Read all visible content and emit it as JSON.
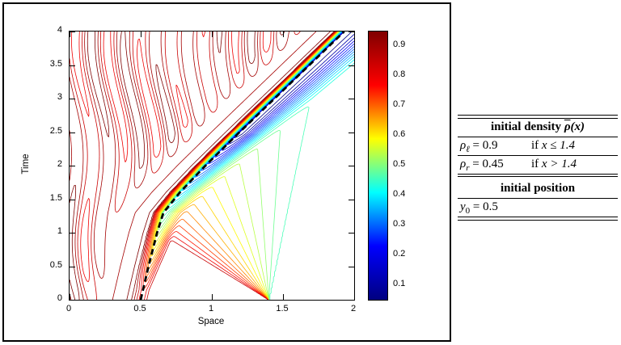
{
  "figure": {
    "xlabel": "Space",
    "ylabel": "Time",
    "x_tick_labels": [
      "0",
      "0.5",
      "1",
      "1.5",
      "2"
    ],
    "y_tick_labels": [
      "0",
      "0.5",
      "1",
      "1.5",
      "2",
      "2.5",
      "3",
      "3.5",
      "4"
    ],
    "colorbar_tick_labels": [
      "0.1",
      "0.2",
      "0.3",
      "0.4",
      "0.5",
      "0.6",
      "0.7",
      "0.8",
      "0.9"
    ]
  },
  "table": {
    "density_header_text": "initial density ",
    "density_header_rho": "ρ",
    "density_header_arg": "(x)",
    "rows": [
      {
        "sym": "ρ",
        "sub": "ℓ",
        "eq": " = 0.9",
        "cond_if": "if",
        "cond_expr": "x ≤ 1.4"
      },
      {
        "sym": "ρ",
        "sub": "r",
        "eq": " = 0.45",
        "cond_if": "if",
        "cond_expr": "x > 1.4"
      }
    ],
    "position_header": "initial position",
    "position_row": {
      "sym": "y",
      "sub": "0",
      "eq": " = 0.5"
    }
  },
  "chart_data": {
    "type": "contour",
    "xlabel": "Space",
    "ylabel": "Time",
    "xlim": [
      0,
      2
    ],
    "ylim": [
      0,
      4
    ],
    "x_ticks": [
      0,
      0.5,
      1,
      1.5,
      2
    ],
    "y_ticks": [
      0,
      0.5,
      1,
      1.5,
      2,
      2.5,
      3,
      3.5,
      4
    ],
    "colormap": "jet",
    "colormap_stops": [
      "#000080",
      "#0000ff",
      "#00ffff",
      "#ffff00",
      "#ff0000",
      "#800000"
    ],
    "levels": {
      "min": 0.05,
      "max": 0.95,
      "count": 28
    },
    "colorbar_ticks": [
      0.1,
      0.2,
      0.3,
      0.4,
      0.5,
      0.6,
      0.7,
      0.8,
      0.9
    ],
    "initial_density": {
      "rho_left": 0.9,
      "rho_right": 0.45,
      "jump_position": 1.4
    },
    "initial_position_y0": 0.5,
    "rarefaction_origin": [
      1.4,
      0
    ],
    "trajectory_dashed": [
      [
        0,
        0.5
      ],
      [
        0.5,
        0.555
      ],
      [
        1,
        0.615
      ],
      [
        1.3,
        0.66
      ],
      [
        1.6,
        0.775
      ],
      [
        2,
        0.955
      ],
      [
        2.5,
        1.195
      ],
      [
        3,
        1.44
      ],
      [
        3.5,
        1.685
      ],
      [
        4,
        1.93
      ]
    ]
  }
}
